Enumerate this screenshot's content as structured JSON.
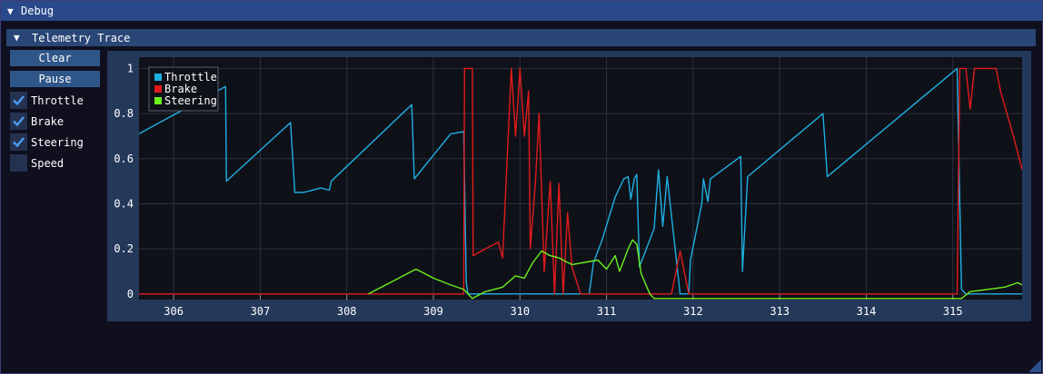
{
  "window": {
    "title": "Debug",
    "collapse_glyph": "▼"
  },
  "section": {
    "title": "Telemetry Trace",
    "collapse_glyph": "▼"
  },
  "buttons": {
    "clear": "Clear",
    "pause": "Pause"
  },
  "checkboxes": [
    {
      "label": "Throttle",
      "checked": true
    },
    {
      "label": "Brake",
      "checked": true
    },
    {
      "label": "Steering",
      "checked": true
    },
    {
      "label": "Speed",
      "checked": false
    }
  ],
  "icons": {
    "check": "check-icon",
    "resize": "resize-grip-icon"
  },
  "colors": {
    "throttle": "#1fb0e3",
    "brake": "#e11b1b",
    "steering": "#6bf01c",
    "plot_bg": "#0f1119",
    "frame": "#24385a",
    "grid": "#2a3140"
  },
  "chart_data": {
    "type": "line",
    "xlim": [
      305.6,
      315.8
    ],
    "ylim": [
      -0.025,
      1.05
    ],
    "x_ticks": [
      "306",
      "307",
      "308",
      "309",
      "310",
      "311",
      "312",
      "313",
      "314",
      "315"
    ],
    "y_ticks": [
      "0",
      "0.2",
      "0.4",
      "0.6",
      "0.8",
      "1"
    ],
    "legend_position": "top-left",
    "series": [
      {
        "name": "Throttle",
        "color": "#1fb0e3",
        "points": [
          [
            305.6,
            0.71
          ],
          [
            306.6,
            0.92
          ],
          [
            306.61,
            0.5
          ],
          [
            307.35,
            0.76
          ],
          [
            307.4,
            0.45
          ],
          [
            307.5,
            0.45
          ],
          [
            307.7,
            0.47
          ],
          [
            307.8,
            0.46
          ],
          [
            307.82,
            0.5
          ],
          [
            308.75,
            0.84
          ],
          [
            308.78,
            0.51
          ],
          [
            309.2,
            0.71
          ],
          [
            309.35,
            0.72
          ],
          [
            309.38,
            0.05
          ],
          [
            309.4,
            0.0
          ],
          [
            310.1,
            0.0
          ],
          [
            310.4,
            0.0
          ],
          [
            310.8,
            0.0
          ],
          [
            310.85,
            0.14
          ],
          [
            310.95,
            0.24
          ],
          [
            311.1,
            0.43
          ],
          [
            311.2,
            0.51
          ],
          [
            311.25,
            0.52
          ],
          [
            311.28,
            0.42
          ],
          [
            311.32,
            0.51
          ],
          [
            311.35,
            0.53
          ],
          [
            311.38,
            0.12
          ],
          [
            311.55,
            0.29
          ],
          [
            311.6,
            0.55
          ],
          [
            311.65,
            0.3
          ],
          [
            311.7,
            0.52
          ],
          [
            311.85,
            0.0
          ],
          [
            311.95,
            0.0
          ],
          [
            311.97,
            0.15
          ],
          [
            312.1,
            0.4
          ],
          [
            312.12,
            0.51
          ],
          [
            312.17,
            0.41
          ],
          [
            312.2,
            0.51
          ],
          [
            312.55,
            0.61
          ],
          [
            312.57,
            0.1
          ],
          [
            312.63,
            0.52
          ],
          [
            313.5,
            0.8
          ],
          [
            313.55,
            0.52
          ],
          [
            315.05,
            1.0
          ],
          [
            315.1,
            0.02
          ],
          [
            315.15,
            0.0
          ],
          [
            315.8,
            0.0
          ]
        ]
      },
      {
        "name": "Brake",
        "color": "#e11b1b",
        "points": [
          [
            305.6,
            0.0
          ],
          [
            309.35,
            0.0
          ],
          [
            309.36,
            1.0
          ],
          [
            309.45,
            1.0
          ],
          [
            309.46,
            0.17
          ],
          [
            309.6,
            0.2
          ],
          [
            309.75,
            0.23
          ],
          [
            309.8,
            0.16
          ],
          [
            309.9,
            1.0
          ],
          [
            309.95,
            0.7
          ],
          [
            310.0,
            1.0
          ],
          [
            310.05,
            0.7
          ],
          [
            310.1,
            0.9
          ],
          [
            310.12,
            0.2
          ],
          [
            310.18,
            0.5
          ],
          [
            310.22,
            0.8
          ],
          [
            310.28,
            0.1
          ],
          [
            310.35,
            0.5
          ],
          [
            310.4,
            0.0
          ],
          [
            310.45,
            0.49
          ],
          [
            310.5,
            0.0
          ],
          [
            310.55,
            0.36
          ],
          [
            310.6,
            0.12
          ],
          [
            310.7,
            0.0
          ],
          [
            311.0,
            0.0
          ],
          [
            311.4,
            0.0
          ],
          [
            311.7,
            0.0
          ],
          [
            311.75,
            0.0
          ],
          [
            311.85,
            0.19
          ],
          [
            311.95,
            0.0
          ],
          [
            312.5,
            0.0
          ],
          [
            315.05,
            0.0
          ],
          [
            315.08,
            1.0
          ],
          [
            315.15,
            1.0
          ],
          [
            315.2,
            0.82
          ],
          [
            315.25,
            1.0
          ],
          [
            315.5,
            1.0
          ],
          [
            315.55,
            0.9
          ],
          [
            315.7,
            0.7
          ],
          [
            315.8,
            0.55
          ]
        ]
      },
      {
        "name": "Steering",
        "color": "#6bf01c",
        "points": [
          [
            308.25,
            0.0
          ],
          [
            308.3,
            0.01
          ],
          [
            308.5,
            0.05
          ],
          [
            308.7,
            0.09
          ],
          [
            308.8,
            0.11
          ],
          [
            308.9,
            0.09
          ],
          [
            309.0,
            0.07
          ],
          [
            309.2,
            0.04
          ],
          [
            309.35,
            0.02
          ],
          [
            309.45,
            -0.02
          ],
          [
            309.6,
            0.01
          ],
          [
            309.8,
            0.03
          ],
          [
            309.95,
            0.08
          ],
          [
            310.05,
            0.07
          ],
          [
            310.15,
            0.14
          ],
          [
            310.25,
            0.19
          ],
          [
            310.35,
            0.17
          ],
          [
            310.45,
            0.16
          ],
          [
            310.6,
            0.13
          ],
          [
            310.75,
            0.14
          ],
          [
            310.9,
            0.15
          ],
          [
            311.0,
            0.11
          ],
          [
            311.1,
            0.17
          ],
          [
            311.15,
            0.1
          ],
          [
            311.25,
            0.2
          ],
          [
            311.3,
            0.24
          ],
          [
            311.35,
            0.22
          ],
          [
            311.4,
            0.09
          ],
          [
            311.5,
            0.0
          ],
          [
            311.55,
            -0.02
          ],
          [
            315.1,
            -0.02
          ],
          [
            315.2,
            0.01
          ],
          [
            315.4,
            0.02
          ],
          [
            315.6,
            0.03
          ],
          [
            315.75,
            0.05
          ],
          [
            315.8,
            0.04
          ]
        ]
      }
    ]
  }
}
